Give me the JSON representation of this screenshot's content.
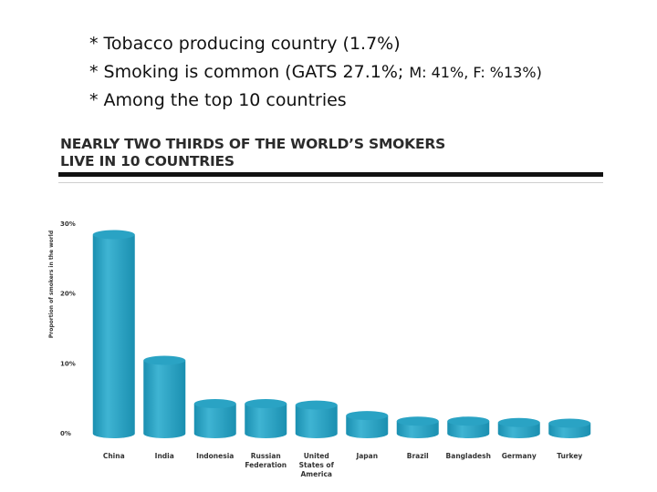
{
  "bullets": [
    {
      "lead": "* Tobacco producing country (1.7%)",
      "tail": ""
    },
    {
      "lead": "* Smoking is common (GATS 27.1%; ",
      "tail": "M: 41%, F: %13%)"
    },
    {
      "lead": "* Among the top 10 countries",
      "tail": ""
    }
  ],
  "chart_data": {
    "type": "bar",
    "title": "NEARLY TWO THIRDS OF THE WORLD’S SMOKERS LIVE IN 10 COUNTRIES",
    "title_lines": [
      "NEARLY TWO THIRDS OF THE WORLD’S SMOKERS",
      "LIVE IN 10 COUNTRIES"
    ],
    "ylabel": "Proportion of smokers in the world",
    "xlabel": "",
    "ylim": [
      0,
      30
    ],
    "yticks": [
      {
        "value": 0,
        "label": "0%"
      },
      {
        "value": 10,
        "label": "10%"
      },
      {
        "value": 20,
        "label": "20%"
      },
      {
        "value": 30,
        "label": "30%"
      }
    ],
    "categories": [
      [
        "China"
      ],
      [
        "India"
      ],
      [
        "Indonesia"
      ],
      [
        "Russian",
        "Federation"
      ],
      [
        "United",
        "States of",
        "America"
      ],
      [
        "Japan"
      ],
      [
        "Brazil"
      ],
      [
        "Bangladesh"
      ],
      [
        "Germany"
      ],
      [
        "Turkey"
      ]
    ],
    "values": [
      28.5,
      10.5,
      4.3,
      4.3,
      4.1,
      2.6,
      1.8,
      1.8,
      1.6,
      1.5
    ],
    "bar_color": "#1a8fb0",
    "bar_highlight": "#3fb4d3",
    "bar_top_color": "#2aa3c4",
    "legend": "none",
    "grid": false
  }
}
